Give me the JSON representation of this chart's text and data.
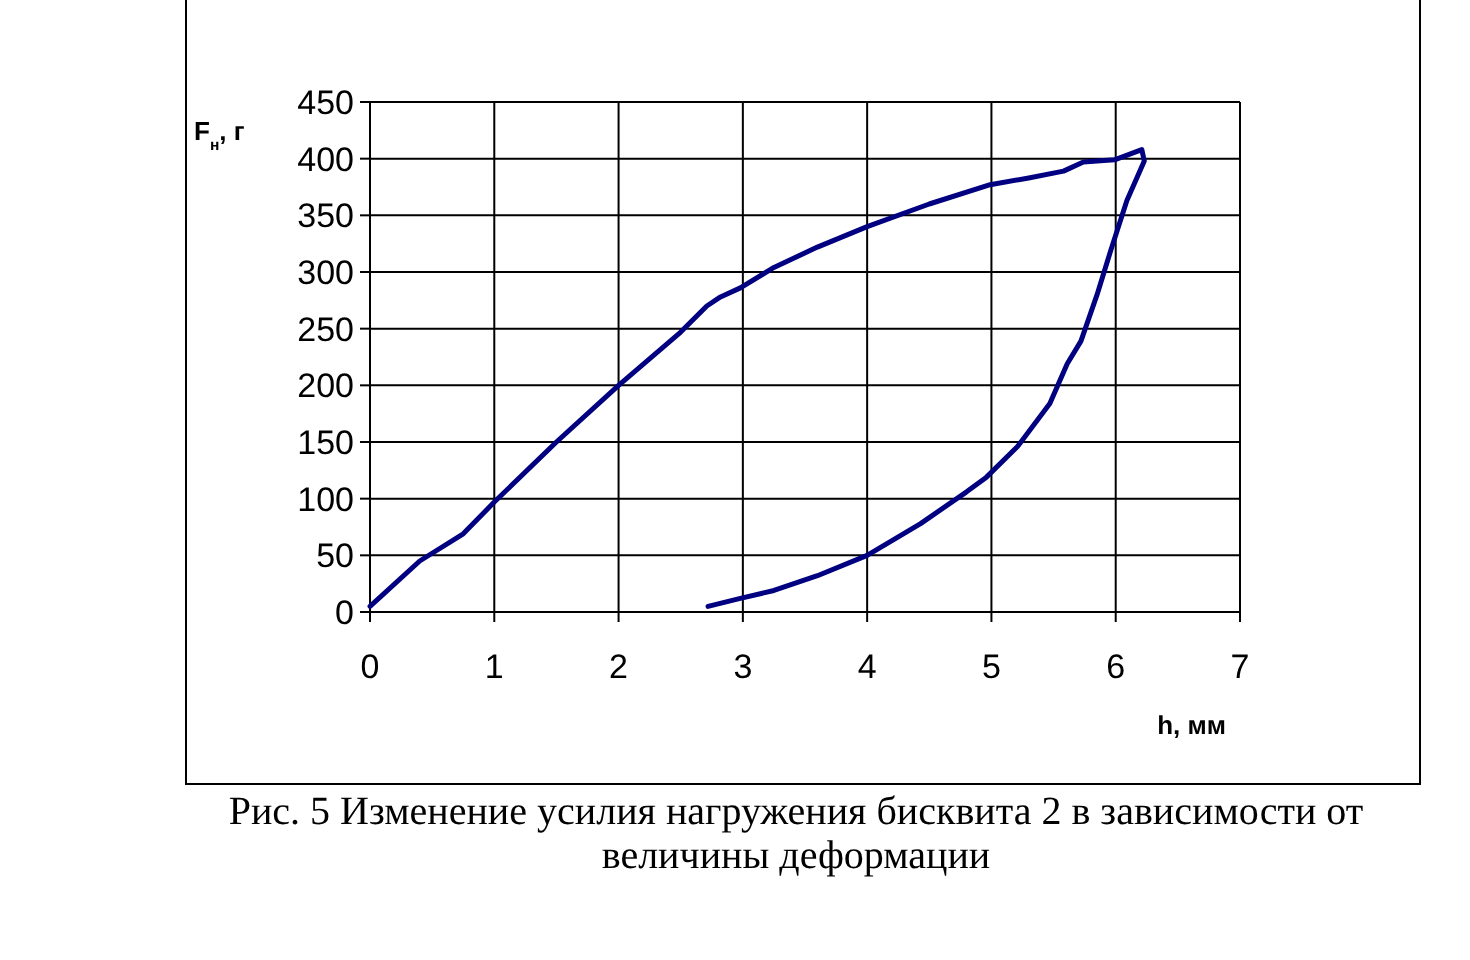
{
  "chart_data": {
    "type": "line",
    "title": "Рис. 5 Изменение усилия нагружения бисквита 2 в зависимости от величины деформации",
    "xlabel": "h, мм",
    "ylabel": "F$_{н}$, г",
    "xlim": [
      0,
      7
    ],
    "xticks": [
      0,
      1,
      2,
      3,
      4,
      5,
      6,
      7
    ],
    "ylim": [
      0,
      450
    ],
    "yticks": [
      0,
      50,
      100,
      150,
      200,
      250,
      300,
      350,
      400,
      450
    ],
    "grid": true,
    "marker": "none",
    "line_style": "solid",
    "series": [
      {
        "color": "#000080",
        "x": [
          0,
          0.4,
          0.75,
          1.0,
          1.5,
          2.0,
          2.5,
          2.71,
          2.82,
          2.98,
          3.25,
          3.6,
          4.0,
          4.5,
          4.99,
          5.3,
          5.58,
          5.74,
          5.99,
          6.21,
          6.23,
          6.09,
          5.96,
          5.85,
          5.72,
          5.61,
          5.47,
          5.21,
          4.96,
          4.8,
          4.43,
          4.0,
          3.6,
          3.25,
          2.98,
          2.72
        ],
        "values": [
          5,
          45,
          69,
          97,
          150,
          200,
          247,
          270,
          278,
          286,
          304,
          322,
          340,
          360,
          377,
          383,
          389,
          397,
          399,
          408,
          398,
          363,
          319,
          280,
          239,
          219,
          184,
          146,
          119,
          106,
          78,
          50,
          32,
          19,
          12,
          5
        ]
      }
    ]
  }
}
